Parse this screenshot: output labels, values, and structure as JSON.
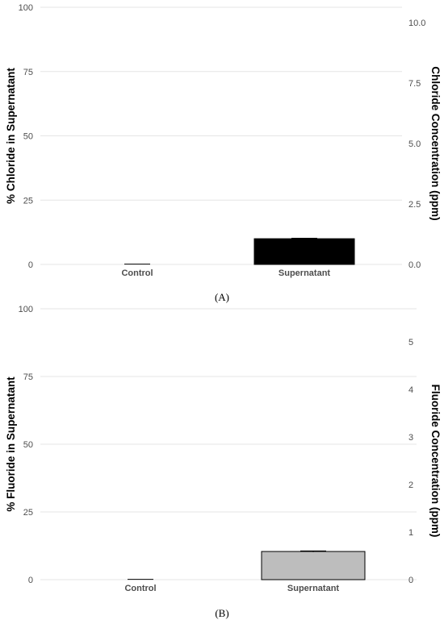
{
  "chart_data": [
    {
      "type": "bar",
      "panel_label": "(A)",
      "categories": [
        "Control",
        "Supernatant"
      ],
      "values": [
        0,
        10
      ],
      "errors": [
        0.1,
        0.2
      ],
      "bar_colors": [
        "#000000",
        "#000000"
      ],
      "ylabel": "% Chloride in Supernatant",
      "ylim": [
        0,
        100
      ],
      "yticks": [
        0,
        25,
        50,
        75,
        100
      ],
      "y2label": "Chloride Concentration (ppm)",
      "y2lim": [
        0,
        10
      ],
      "y2ticks": [
        "0.0",
        "2.5",
        "5.0",
        "7.5",
        "10.0"
      ],
      "grid": true
    },
    {
      "type": "bar",
      "panel_label": "(B)",
      "categories": [
        "Control",
        "Supernatant"
      ],
      "values": [
        0,
        10.4
      ],
      "errors": [
        0.1,
        0.2
      ],
      "bar_colors": [
        "#bdbdbd",
        "#bdbdbd"
      ],
      "ylabel": "% Fluoride in Supernatant",
      "ylim": [
        0,
        100
      ],
      "yticks": [
        0,
        25,
        50,
        75,
        100
      ],
      "y2label": "Fluoride Concentration (ppm)",
      "y2lim": [
        0,
        5
      ],
      "y2ticks": [
        "0",
        "1",
        "2",
        "3",
        "4",
        "5"
      ],
      "grid": true
    }
  ]
}
